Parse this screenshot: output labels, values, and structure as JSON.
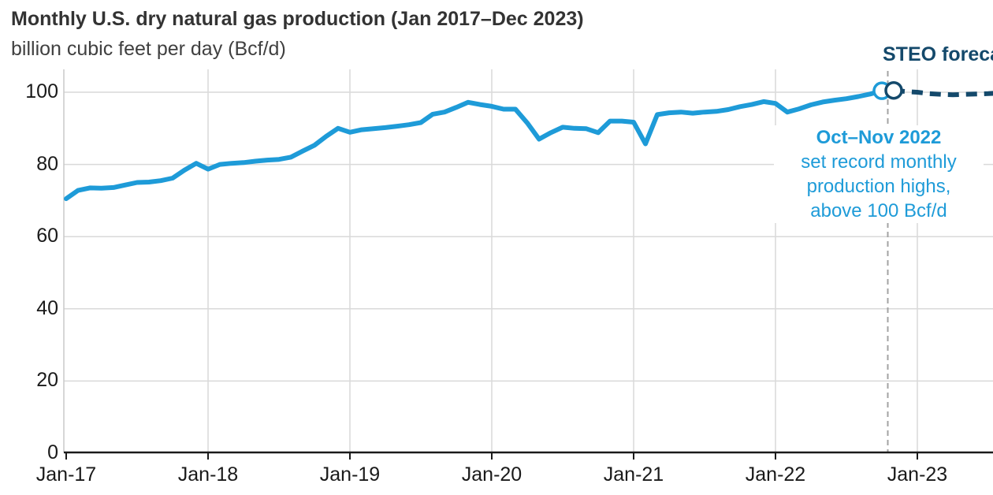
{
  "header": {
    "title": "Monthly U.S. dry natural gas production (Jan 2017–Dec 2023)",
    "subtitle": "billion cubic feet per day (Bcf/d)"
  },
  "annotation": {
    "title": "Oct–Nov 2022",
    "line2": "set record monthly",
    "line3": "production highs,",
    "line4": "above 100 Bcf/d"
  },
  "chart_data": {
    "type": "line",
    "title": "Monthly U.S. dry natural gas production (Jan 2017–Dec 2023)",
    "ylabel": "billion cubic feet per day (Bcf/d)",
    "xlabel": "",
    "grid": true,
    "legend_position": "none",
    "forecast_label": "STEO forecast",
    "ylim": [
      0,
      105
    ],
    "y_ticks": [
      0,
      20,
      40,
      60,
      80,
      100
    ],
    "x_tick_labels": [
      "Jan-17",
      "Jan-18",
      "Jan-19",
      "Jan-20",
      "Jan-21",
      "Jan-22",
      "Jan-23"
    ],
    "x_range_months": "Jan 2017 to Dec 2023",
    "colors": {
      "history": "#1e9bd8",
      "forecast": "#14496b",
      "grid": "#d9d9d9",
      "boundary": "#a3a3a3",
      "axis": "#1a1a1a"
    },
    "forecast_boundary": {
      "after_month": "2022-10"
    },
    "series": [
      {
        "name": "history",
        "style": "solid",
        "color": "#1e9bd8",
        "start_month": "2017-01",
        "values": [
          70.5,
          72.8,
          73.5,
          73.4,
          73.6,
          74.3,
          75.0,
          75.1,
          75.5,
          76.2,
          78.4,
          80.3,
          78.7,
          80.0,
          80.3,
          80.5,
          80.9,
          81.2,
          81.4,
          82.0,
          83.7,
          85.3,
          87.8,
          90.0,
          88.9,
          89.6,
          89.9,
          90.2,
          90.6,
          91.0,
          91.6,
          93.9,
          94.5,
          95.8,
          97.2,
          96.6,
          96.1,
          95.3,
          95.3,
          91.5,
          87.0,
          88.8,
          90.3,
          90.0,
          89.9,
          88.8,
          92.0,
          92.0,
          91.7,
          85.7,
          93.8,
          94.3,
          94.5,
          94.2,
          94.5,
          94.7,
          95.2,
          96.0,
          96.6,
          97.4,
          96.9,
          94.5,
          95.4,
          96.5,
          97.3,
          97.8,
          98.2,
          98.8,
          99.5,
          100.4
        ]
      },
      {
        "name": "STEO forecast",
        "style": "dashed",
        "color": "#14496b",
        "start_month": "2022-11",
        "values": [
          100.5,
          100.2,
          100.0,
          99.6,
          99.4,
          99.3,
          99.4,
          99.5,
          99.6,
          99.8,
          99.9,
          100.0,
          100.1,
          100.2
        ]
      }
    ],
    "markers": [
      {
        "name": "record-oct-2022",
        "month": "2022-10",
        "value": 100.4,
        "color": "#1e9bd8"
      },
      {
        "name": "record-nov-2022",
        "month": "2022-11",
        "value": 100.5,
        "color": "#14496b"
      }
    ]
  }
}
